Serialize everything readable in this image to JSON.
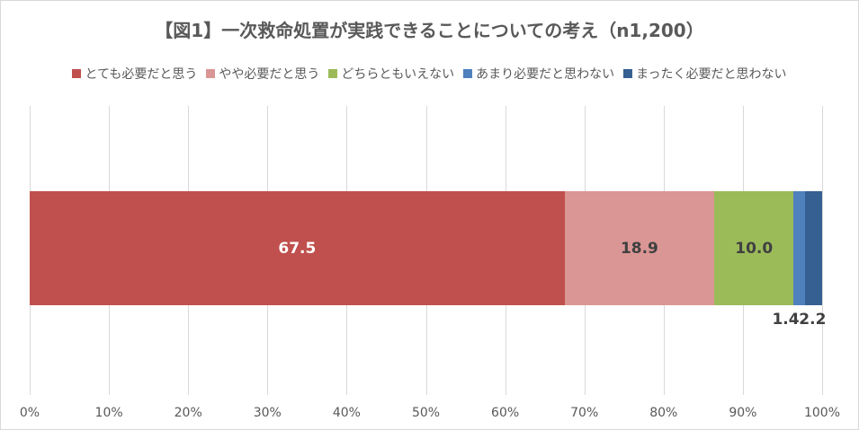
{
  "chart_data": {
    "type": "bar",
    "orientation": "horizontal",
    "stacked": "100%",
    "title": "【図1】一次救命処置が実践できることについての考え（n1,200）",
    "xlabel": "",
    "ylabel": "",
    "xlim": [
      0,
      100
    ],
    "x_ticks": [
      "0%",
      "10%",
      "20%",
      "30%",
      "40%",
      "50%",
      "60%",
      "70%",
      "80%",
      "90%",
      "100%"
    ],
    "grid": true,
    "legend_position": "top",
    "categories": [
      ""
    ],
    "series": [
      {
        "name": "とても必要だと思う",
        "values": [
          67.5
        ],
        "color": "#c0504d",
        "label": "67.5",
        "label_color": "#ffffff"
      },
      {
        "name": "やや必要だと思う",
        "values": [
          18.9
        ],
        "color": "#da9694",
        "label": "18.9",
        "label_color": "#404040"
      },
      {
        "name": "どちらともいえない",
        "values": [
          10.0
        ],
        "color": "#9bbb59",
        "label": "10.0",
        "label_color": "#404040"
      },
      {
        "name": "あまり必要だと思わない",
        "values": [
          1.4
        ],
        "color": "#4f81bd",
        "label": "1.4",
        "label_color": "#404040"
      },
      {
        "name": "まったく必要だと思わない",
        "values": [
          2.2
        ],
        "color": "#366092",
        "label": "2.2",
        "label_color": "#404040"
      }
    ]
  }
}
